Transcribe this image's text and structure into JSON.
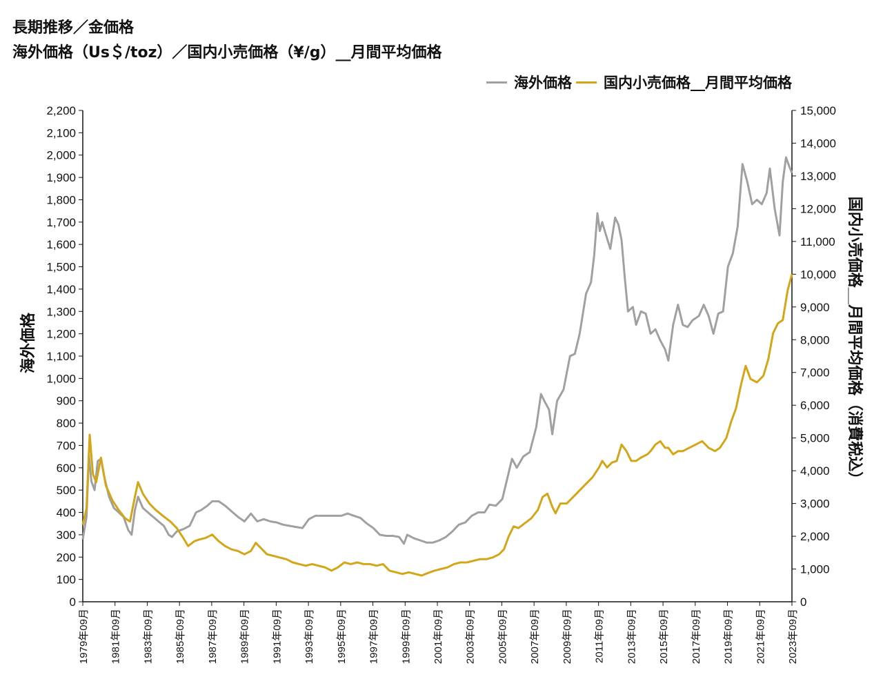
{
  "title": {
    "line1": "長期推移／金価格",
    "line2": "海外価格（Us＄/toz）／国内小売価格（¥/g）__月間平均価格"
  },
  "legend": [
    {
      "name": "海外価格",
      "color": "#a0a0a0"
    },
    {
      "name": "国内小売価格__月間平均価格",
      "color": "#d4a516"
    }
  ],
  "chart_data": {
    "type": "line",
    "x_labels": [
      "1979年09月",
      "1981年09月",
      "1983年09月",
      "1985年09月",
      "1987年09月",
      "1989年09月",
      "1991年09月",
      "1993年09月",
      "1995年09月",
      "1997年09月",
      "1999年09月",
      "2001年09月",
      "2003年09月",
      "2005年09月",
      "2007年09月",
      "2009年09月",
      "2011年09月",
      "2013年09月",
      "2015年09月",
      "2017年09月",
      "2019年09月",
      "2021年09月",
      "2023年09月"
    ],
    "x_range": [
      1979.67,
      2023.67
    ],
    "y_left": {
      "label": "海外価格",
      "range": [
        0,
        2200
      ],
      "ticks": [
        "0",
        "100",
        "200",
        "300",
        "400",
        "500",
        "600",
        "700",
        "800",
        "900",
        "1,000",
        "1,100",
        "1,200",
        "1,300",
        "1,400",
        "1,500",
        "1,600",
        "1,700",
        "1,800",
        "1,900",
        "2,000",
        "2,100",
        "2,200"
      ]
    },
    "y_right": {
      "label": "国内小売価格__月間平均価格（消費税込）",
      "range": [
        0,
        15000
      ],
      "ticks": [
        "0",
        "1,000",
        "2,000",
        "3,000",
        "4,000",
        "5,000",
        "6,000",
        "7,000",
        "8,000",
        "9,000",
        "10,000",
        "11,000",
        "12,000",
        "13,000",
        "14,000",
        "15,000"
      ]
    },
    "series": [
      {
        "name": "海外価格",
        "axis": "left",
        "color": "#a0a0a0",
        "points": [
          [
            1979.67,
            280
          ],
          [
            1979.9,
            380
          ],
          [
            1980.05,
            660
          ],
          [
            1980.2,
            540
          ],
          [
            1980.4,
            500
          ],
          [
            1980.6,
            630
          ],
          [
            1980.8,
            640
          ],
          [
            1981.0,
            560
          ],
          [
            1981.3,
            470
          ],
          [
            1981.6,
            420
          ],
          [
            1981.9,
            400
          ],
          [
            1982.2,
            380
          ],
          [
            1982.5,
            320
          ],
          [
            1982.7,
            300
          ],
          [
            1982.9,
            410
          ],
          [
            1983.1,
            470
          ],
          [
            1983.4,
            420
          ],
          [
            1983.8,
            395
          ],
          [
            1984.2,
            370
          ],
          [
            1984.7,
            340
          ],
          [
            1985.0,
            300
          ],
          [
            1985.2,
            290
          ],
          [
            1985.5,
            315
          ],
          [
            1985.9,
            325
          ],
          [
            1986.3,
            340
          ],
          [
            1986.7,
            400
          ],
          [
            1987.0,
            410
          ],
          [
            1987.4,
            430
          ],
          [
            1987.7,
            450
          ],
          [
            1988.1,
            450
          ],
          [
            1988.5,
            430
          ],
          [
            1988.9,
            405
          ],
          [
            1989.3,
            380
          ],
          [
            1989.7,
            360
          ],
          [
            1990.1,
            395
          ],
          [
            1990.5,
            360
          ],
          [
            1990.9,
            370
          ],
          [
            1991.3,
            360
          ],
          [
            1991.7,
            355
          ],
          [
            1992.1,
            345
          ],
          [
            1992.5,
            340
          ],
          [
            1992.9,
            335
          ],
          [
            1993.3,
            330
          ],
          [
            1993.7,
            370
          ],
          [
            1994.1,
            385
          ],
          [
            1994.5,
            385
          ],
          [
            1994.9,
            385
          ],
          [
            1995.3,
            385
          ],
          [
            1995.7,
            385
          ],
          [
            1996.1,
            395
          ],
          [
            1996.5,
            385
          ],
          [
            1996.9,
            375
          ],
          [
            1997.3,
            350
          ],
          [
            1997.7,
            330
          ],
          [
            1998.1,
            300
          ],
          [
            1998.5,
            295
          ],
          [
            1998.9,
            295
          ],
          [
            1999.3,
            290
          ],
          [
            1999.6,
            260
          ],
          [
            1999.8,
            300
          ],
          [
            2000.2,
            285
          ],
          [
            2000.6,
            275
          ],
          [
            2001.0,
            265
          ],
          [
            2001.4,
            265
          ],
          [
            2001.8,
            275
          ],
          [
            2002.2,
            290
          ],
          [
            2002.6,
            315
          ],
          [
            2003.0,
            345
          ],
          [
            2003.4,
            355
          ],
          [
            2003.8,
            385
          ],
          [
            2004.2,
            400
          ],
          [
            2004.6,
            400
          ],
          [
            2004.9,
            435
          ],
          [
            2005.3,
            430
          ],
          [
            2005.7,
            460
          ],
          [
            2006.0,
            550
          ],
          [
            2006.3,
            640
          ],
          [
            2006.6,
            600
          ],
          [
            2007.0,
            650
          ],
          [
            2007.4,
            670
          ],
          [
            2007.8,
            780
          ],
          [
            2008.1,
            930
          ],
          [
            2008.3,
            900
          ],
          [
            2008.6,
            860
          ],
          [
            2008.8,
            750
          ],
          [
            2009.1,
            900
          ],
          [
            2009.5,
            950
          ],
          [
            2009.9,
            1100
          ],
          [
            2010.2,
            1110
          ],
          [
            2010.5,
            1200
          ],
          [
            2010.9,
            1380
          ],
          [
            2011.2,
            1430
          ],
          [
            2011.4,
            1550
          ],
          [
            2011.6,
            1740
          ],
          [
            2011.75,
            1660
          ],
          [
            2011.9,
            1700
          ],
          [
            2012.1,
            1650
          ],
          [
            2012.4,
            1580
          ],
          [
            2012.7,
            1720
          ],
          [
            2012.9,
            1690
          ],
          [
            2013.1,
            1620
          ],
          [
            2013.3,
            1450
          ],
          [
            2013.5,
            1300
          ],
          [
            2013.8,
            1320
          ],
          [
            2014.0,
            1240
          ],
          [
            2014.3,
            1300
          ],
          [
            2014.6,
            1290
          ],
          [
            2014.9,
            1200
          ],
          [
            2015.2,
            1220
          ],
          [
            2015.5,
            1170
          ],
          [
            2015.8,
            1130
          ],
          [
            2016.0,
            1080
          ],
          [
            2016.3,
            1240
          ],
          [
            2016.6,
            1330
          ],
          [
            2016.9,
            1240
          ],
          [
            2017.2,
            1230
          ],
          [
            2017.5,
            1260
          ],
          [
            2017.9,
            1280
          ],
          [
            2018.2,
            1330
          ],
          [
            2018.5,
            1280
          ],
          [
            2018.8,
            1200
          ],
          [
            2019.1,
            1290
          ],
          [
            2019.4,
            1300
          ],
          [
            2019.7,
            1500
          ],
          [
            2020.0,
            1560
          ],
          [
            2020.3,
            1680
          ],
          [
            2020.6,
            1960
          ],
          [
            2020.9,
            1880
          ],
          [
            2021.2,
            1780
          ],
          [
            2021.5,
            1800
          ],
          [
            2021.8,
            1780
          ],
          [
            2022.1,
            1830
          ],
          [
            2022.3,
            1940
          ],
          [
            2022.6,
            1760
          ],
          [
            2022.9,
            1640
          ],
          [
            2023.1,
            1880
          ],
          [
            2023.3,
            1990
          ],
          [
            2023.5,
            1950
          ],
          [
            2023.67,
            1920
          ]
        ]
      },
      {
        "name": "国内小売価格__月間平均価格",
        "axis": "right",
        "color": "#d4a516",
        "points": [
          [
            1979.67,
            2350
          ],
          [
            1979.9,
            2850
          ],
          [
            1980.1,
            5100
          ],
          [
            1980.3,
            3900
          ],
          [
            1980.5,
            3650
          ],
          [
            1980.8,
            4400
          ],
          [
            1981.1,
            3550
          ],
          [
            1981.5,
            3100
          ],
          [
            1981.9,
            2800
          ],
          [
            1982.3,
            2550
          ],
          [
            1982.6,
            2450
          ],
          [
            1982.9,
            3200
          ],
          [
            1983.1,
            3650
          ],
          [
            1983.4,
            3300
          ],
          [
            1983.8,
            3000
          ],
          [
            1984.2,
            2800
          ],
          [
            1984.7,
            2600
          ],
          [
            1985.1,
            2450
          ],
          [
            1985.5,
            2250
          ],
          [
            1985.9,
            1950
          ],
          [
            1986.2,
            1700
          ],
          [
            1986.6,
            1850
          ],
          [
            1986.9,
            1900
          ],
          [
            1987.3,
            1950
          ],
          [
            1987.7,
            2050
          ],
          [
            1988.1,
            1850
          ],
          [
            1988.5,
            1700
          ],
          [
            1988.9,
            1600
          ],
          [
            1989.3,
            1550
          ],
          [
            1989.7,
            1450
          ],
          [
            1990.1,
            1550
          ],
          [
            1990.4,
            1800
          ],
          [
            1990.7,
            1650
          ],
          [
            1991.1,
            1450
          ],
          [
            1991.5,
            1400
          ],
          [
            1991.9,
            1350
          ],
          [
            1992.3,
            1300
          ],
          [
            1992.7,
            1200
          ],
          [
            1993.1,
            1150
          ],
          [
            1993.5,
            1100
          ],
          [
            1993.9,
            1150
          ],
          [
            1994.3,
            1100
          ],
          [
            1994.7,
            1050
          ],
          [
            1995.1,
            950
          ],
          [
            1995.5,
            1050
          ],
          [
            1995.9,
            1200
          ],
          [
            1996.3,
            1150
          ],
          [
            1996.7,
            1200
          ],
          [
            1997.1,
            1150
          ],
          [
            1997.5,
            1150
          ],
          [
            1997.9,
            1100
          ],
          [
            1998.3,
            1150
          ],
          [
            1998.7,
            950
          ],
          [
            1999.1,
            900
          ],
          [
            1999.5,
            850
          ],
          [
            1999.9,
            900
          ],
          [
            2000.3,
            850
          ],
          [
            2000.7,
            800
          ],
          [
            2001.1,
            880
          ],
          [
            2001.5,
            950
          ],
          [
            2001.9,
            1000
          ],
          [
            2002.3,
            1050
          ],
          [
            2002.7,
            1150
          ],
          [
            2003.1,
            1200
          ],
          [
            2003.5,
            1200
          ],
          [
            2003.9,
            1250
          ],
          [
            2004.3,
            1300
          ],
          [
            2004.7,
            1300
          ],
          [
            2005.1,
            1350
          ],
          [
            2005.5,
            1450
          ],
          [
            2005.8,
            1600
          ],
          [
            2006.1,
            2000
          ],
          [
            2006.4,
            2300
          ],
          [
            2006.7,
            2250
          ],
          [
            2007.1,
            2400
          ],
          [
            2007.5,
            2550
          ],
          [
            2007.9,
            2800
          ],
          [
            2008.2,
            3200
          ],
          [
            2008.5,
            3300
          ],
          [
            2008.8,
            2900
          ],
          [
            2009.0,
            2700
          ],
          [
            2009.3,
            3000
          ],
          [
            2009.7,
            3000
          ],
          [
            2010.1,
            3200
          ],
          [
            2010.5,
            3400
          ],
          [
            2010.9,
            3600
          ],
          [
            2011.3,
            3800
          ],
          [
            2011.7,
            4100
          ],
          [
            2011.9,
            4300
          ],
          [
            2012.2,
            4100
          ],
          [
            2012.5,
            4250
          ],
          [
            2012.8,
            4300
          ],
          [
            2013.1,
            4800
          ],
          [
            2013.4,
            4600
          ],
          [
            2013.7,
            4300
          ],
          [
            2014.0,
            4300
          ],
          [
            2014.3,
            4400
          ],
          [
            2014.7,
            4500
          ],
          [
            2014.9,
            4600
          ],
          [
            2015.2,
            4800
          ],
          [
            2015.5,
            4900
          ],
          [
            2015.8,
            4700
          ],
          [
            2016.0,
            4700
          ],
          [
            2016.3,
            4500
          ],
          [
            2016.6,
            4600
          ],
          [
            2016.9,
            4600
          ],
          [
            2017.3,
            4700
          ],
          [
            2017.7,
            4800
          ],
          [
            2018.1,
            4900
          ],
          [
            2018.5,
            4700
          ],
          [
            2018.9,
            4600
          ],
          [
            2019.2,
            4700
          ],
          [
            2019.6,
            5000
          ],
          [
            2019.9,
            5500
          ],
          [
            2020.2,
            5900
          ],
          [
            2020.5,
            6600
          ],
          [
            2020.8,
            7200
          ],
          [
            2021.1,
            6800
          ],
          [
            2021.5,
            6700
          ],
          [
            2021.9,
            6900
          ],
          [
            2022.2,
            7400
          ],
          [
            2022.5,
            8200
          ],
          [
            2022.8,
            8500
          ],
          [
            2023.1,
            8600
          ],
          [
            2023.4,
            9500
          ],
          [
            2023.67,
            10000
          ]
        ]
      }
    ]
  }
}
